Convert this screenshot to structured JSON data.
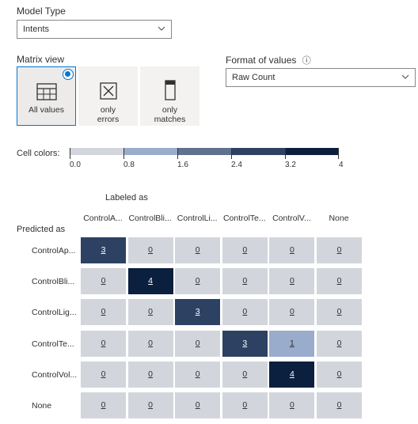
{
  "model_type": {
    "label": "Model Type",
    "value": "Intents"
  },
  "matrix_view": {
    "label": "Matrix view",
    "options": [
      {
        "line1": "All values",
        "line2": "",
        "selected": true,
        "icon": "grid-icon"
      },
      {
        "line1": "only",
        "line2": "errors",
        "selected": false,
        "icon": "x-box-icon"
      },
      {
        "line1": "only",
        "line2": "matches",
        "selected": false,
        "icon": "bar-icon"
      }
    ]
  },
  "format_of_values": {
    "label": "Format of values",
    "info_icon": "ⓘ",
    "value": "Raw Count"
  },
  "cell_colors": {
    "label": "Cell colors:",
    "scale": [
      "0.0",
      "0.8",
      "1.6",
      "2.4",
      "3.2",
      "4"
    ],
    "colors": [
      "#d2d6dc",
      "#9aaccb",
      "#5f718c",
      "#2d4163",
      "#0b1f3f"
    ]
  },
  "matrix": {
    "labeled_as": "Labeled as",
    "predicted_as": "Predicted as",
    "columns": [
      "ControlA...",
      "ControlBli...",
      "ControlLi...",
      "ControlTe...",
      "ControlV...",
      "None"
    ],
    "rows": [
      {
        "label": "ControlAp...",
        "values": [
          "3",
          "0",
          "0",
          "0",
          "0",
          "0"
        ]
      },
      {
        "label": "ControlBli...",
        "values": [
          "0",
          "4",
          "0",
          "0",
          "0",
          "0"
        ]
      },
      {
        "label": "ControlLig...",
        "values": [
          "0",
          "0",
          "3",
          "0",
          "0",
          "0"
        ]
      },
      {
        "label": "ControlTe...",
        "values": [
          "0",
          "0",
          "0",
          "3",
          "1",
          "0"
        ]
      },
      {
        "label": "ControlVol...",
        "values": [
          "0",
          "0",
          "0",
          "0",
          "4",
          "0"
        ]
      },
      {
        "label": "None",
        "values": [
          "0",
          "0",
          "0",
          "0",
          "0",
          "0"
        ]
      }
    ]
  }
}
